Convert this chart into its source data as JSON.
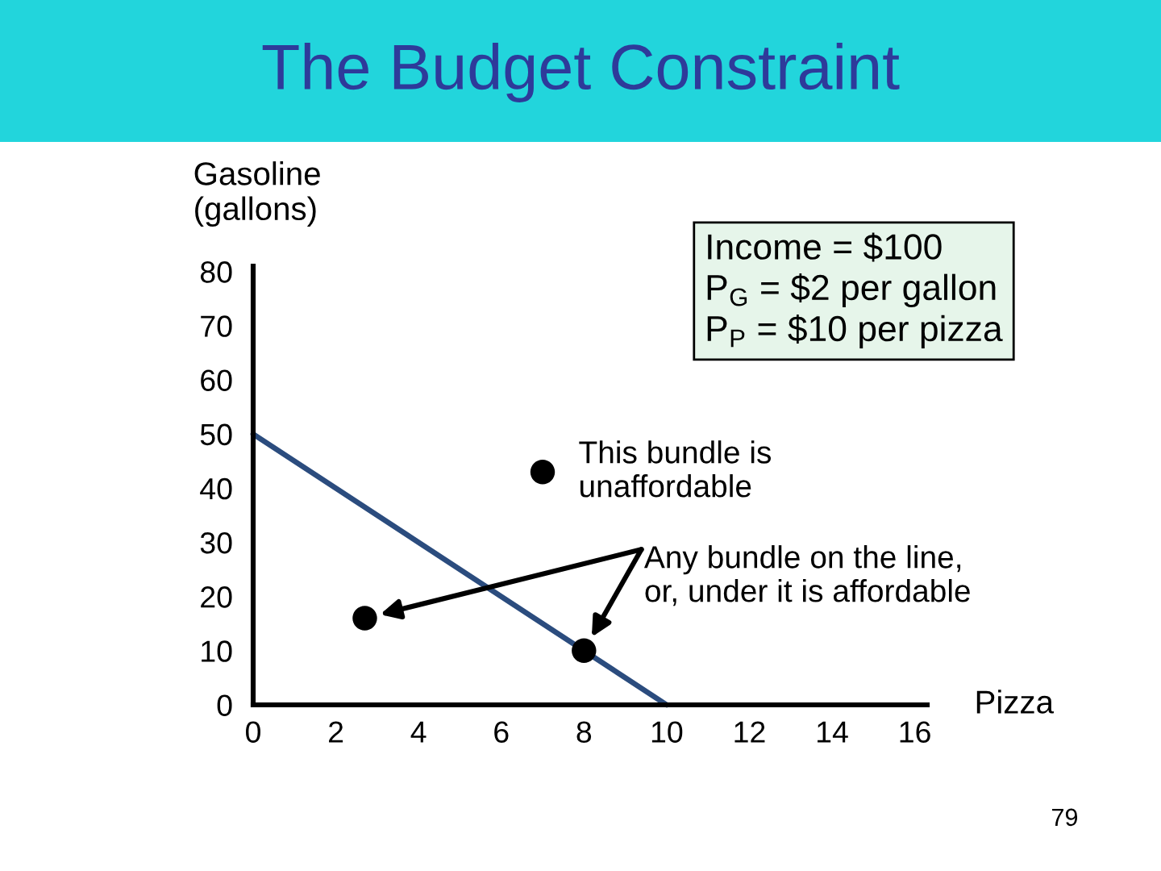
{
  "chart_data": {
    "type": "line",
    "title": "The Budget Constraint",
    "xlabel": "Pizza",
    "ylabel": "Gasoline\n(gallons)",
    "xlim": [
      0,
      16.3
    ],
    "ylim": [
      0,
      81
    ],
    "xticks": [
      0,
      2,
      4,
      6,
      8,
      10,
      12,
      14,
      16
    ],
    "yticks": [
      0,
      10,
      20,
      30,
      40,
      50,
      60,
      70,
      80
    ],
    "series": [
      {
        "type": "line",
        "x": [
          0,
          10
        ],
        "values": [
          50,
          0
        ],
        "color": "#2b4c7e",
        "marker": "none"
      },
      {
        "type": "scatter",
        "x": [
          7
        ],
        "values": [
          43
        ],
        "color": "#000000",
        "marker": "circle"
      },
      {
        "type": "scatter",
        "x": [
          2.7,
          8
        ],
        "values": [
          16,
          10
        ],
        "color": "#000000",
        "marker": "circle"
      }
    ],
    "annotations": [
      "Income = $100\nP$_{G}$ = $2 per gallon\nP$_{P}$ = $10 per pizza",
      {
        "text": "This bundle is\nunaffordable",
        "x": 7,
        "y": 43
      },
      "Any bundle on the line,\nor, under it is affordable",
      "79"
    ]
  }
}
